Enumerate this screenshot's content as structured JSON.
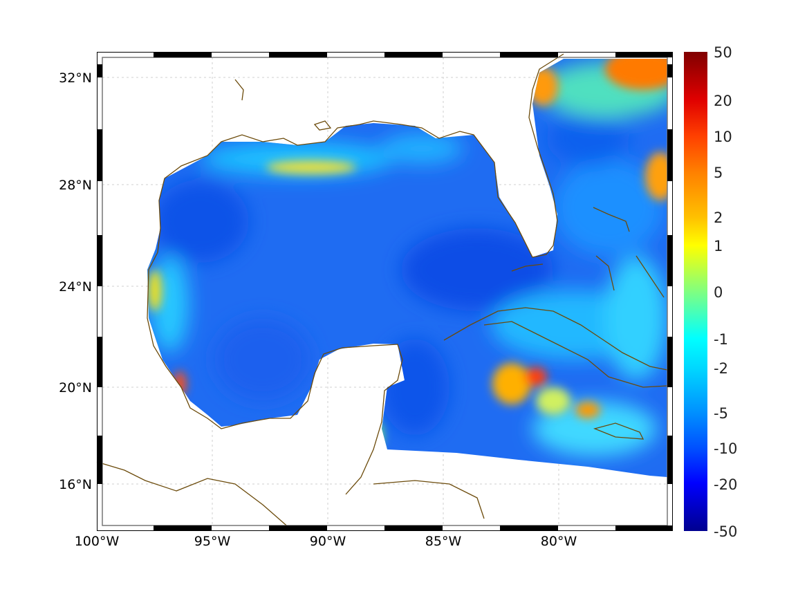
{
  "chart_data": {
    "type": "heatmap",
    "title": "",
    "region": "Gulf of Mexico and Caribbean",
    "x_ticks": [
      "100°W",
      "95°W",
      "90°W",
      "85°W",
      "80°W"
    ],
    "x_tick_values": [
      -100,
      -95,
      -90,
      -85,
      -80
    ],
    "y_ticks": [
      "32°N",
      "28°N",
      "24°N",
      "20°N",
      "16°N"
    ],
    "y_tick_values": [
      32,
      28,
      24,
      20,
      16
    ],
    "xlim": [
      -100,
      -75
    ],
    "ylim": [
      14.5,
      33
    ],
    "grid": true,
    "colorbar": {
      "ticks": [
        "50",
        "20",
        "10",
        "5",
        "2",
        "1",
        "0",
        "-1",
        "-2",
        "-5",
        "-10",
        "-20",
        "-50"
      ],
      "range": [
        -50,
        50
      ],
      "colormap": "jet"
    },
    "features": [
      {
        "name": "high anomaly",
        "lon": -81.5,
        "lat": 20.2,
        "level": "10"
      },
      {
        "name": "high anomaly",
        "lon": -78.5,
        "lat": 19.0,
        "level": "5"
      },
      {
        "name": "high anomaly",
        "lon": -96.2,
        "lat": 19.9,
        "level": "10"
      },
      {
        "name": "high anomaly",
        "lon": -80.5,
        "lat": 32.0,
        "level": "5"
      },
      {
        "name": "high anomaly",
        "lon": -75.5,
        "lat": 32.5,
        "level": "10"
      },
      {
        "name": "moderate anomaly",
        "lon": -89.5,
        "lat": 28.6,
        "level": "2"
      },
      {
        "name": "low anomaly",
        "lon": -85,
        "lat": 25,
        "level": "-10"
      }
    ]
  },
  "colors": {
    "coast": "#6b4a0a",
    "base": "#1f6cf2"
  }
}
